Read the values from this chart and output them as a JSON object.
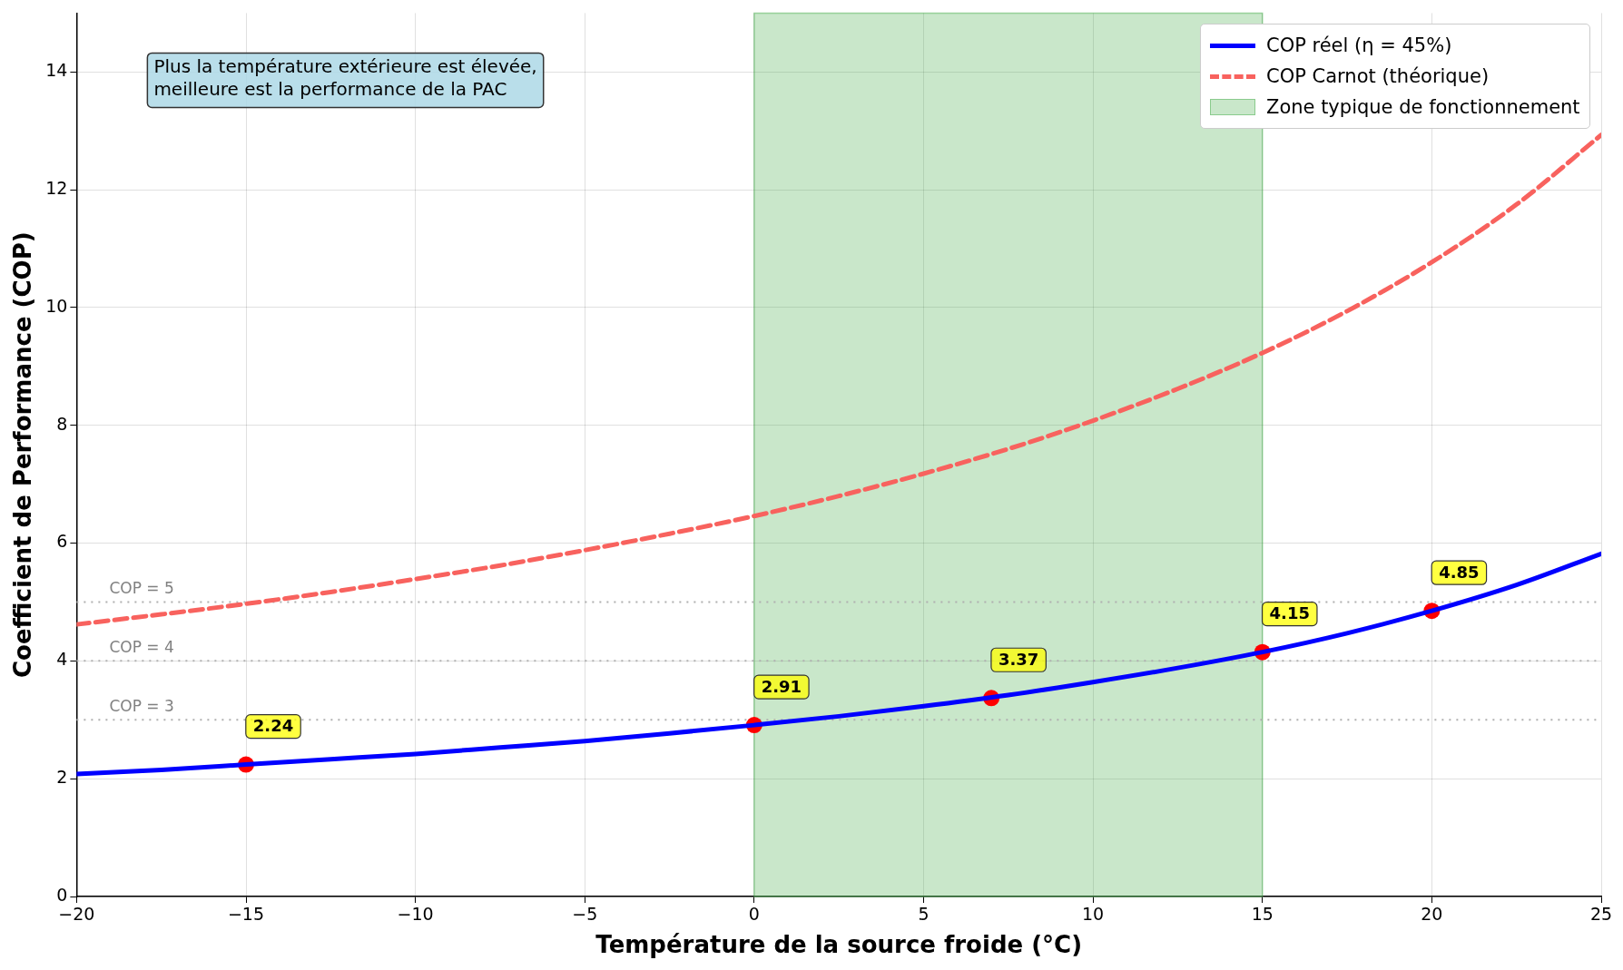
{
  "chart_data": {
    "type": "line",
    "xlabel": "Température de la source froide (°C)",
    "ylabel": "Coefficient de Performance (COP)",
    "x": [
      -20,
      -17.5,
      -15,
      -12.5,
      -10,
      -7.5,
      -5,
      -2.5,
      0,
      2.5,
      5,
      7.5,
      10,
      12.5,
      15,
      17.5,
      20,
      22.5,
      25
    ],
    "series": [
      {
        "name": "COP réel (η = 45%)",
        "color": "#0000ff",
        "line_style": "solid",
        "values": [
          2.08,
          2.15,
          2.24,
          2.33,
          2.42,
          2.53,
          2.64,
          2.77,
          2.91,
          3.06,
          3.23,
          3.42,
          3.64,
          3.88,
          4.15,
          4.47,
          4.85,
          5.29,
          5.82
        ]
      },
      {
        "name": "COP Carnot (théorique)",
        "color": "#f8625e",
        "line_style": "dashed",
        "values": [
          4.62,
          4.79,
          4.97,
          5.17,
          5.39,
          5.62,
          5.88,
          6.16,
          6.46,
          6.8,
          7.18,
          7.6,
          8.08,
          8.62,
          9.23,
          9.94,
          10.77,
          11.75,
          12.93
        ]
      },
      {
        "type": "scatter",
        "color": "#ff0000",
        "marker": "circle",
        "x": [
          -15,
          0,
          7,
          15,
          20
        ],
        "values": [
          2.24,
          2.91,
          3.37,
          4.15,
          4.85
        ],
        "value_labels": [
          "2.24",
          "2.91",
          "3.37",
          "4.15",
          "4.85"
        ]
      }
    ],
    "xlim": [
      -20,
      25
    ],
    "xticks": [
      {
        "value": -20,
        "label": "−20"
      },
      {
        "value": -15,
        "label": "−15"
      },
      {
        "value": -10,
        "label": "−10"
      },
      {
        "value": -5,
        "label": "−5"
      },
      0,
      5,
      10,
      15,
      20,
      25
    ],
    "ylim": [
      0,
      15
    ],
    "yticks": [
      0,
      2,
      4,
      6,
      8,
      10,
      12,
      14
    ],
    "ref_lines": [
      {
        "axis": "y",
        "value": 5,
        "label": "COP = 5",
        "color": "#b0b0b0",
        "line_style": "dotted"
      },
      {
        "axis": "y",
        "value": 4,
        "label": "COP = 4",
        "color": "#b0b0b0",
        "line_style": "dotted"
      },
      {
        "axis": "y",
        "value": 3,
        "label": "COP = 3",
        "color": "#b0b0b0",
        "line_style": "dotted"
      }
    ],
    "bands": [
      {
        "axis": "x",
        "from": 0,
        "to": 15,
        "label": "Zone typique de fonctionnement",
        "color": "#4caf50"
      }
    ],
    "annotations": [
      "Plus la température extérieure est élevée,\nmeilleure est la performance de la PAC"
    ],
    "grid": true,
    "legend": "top right"
  }
}
